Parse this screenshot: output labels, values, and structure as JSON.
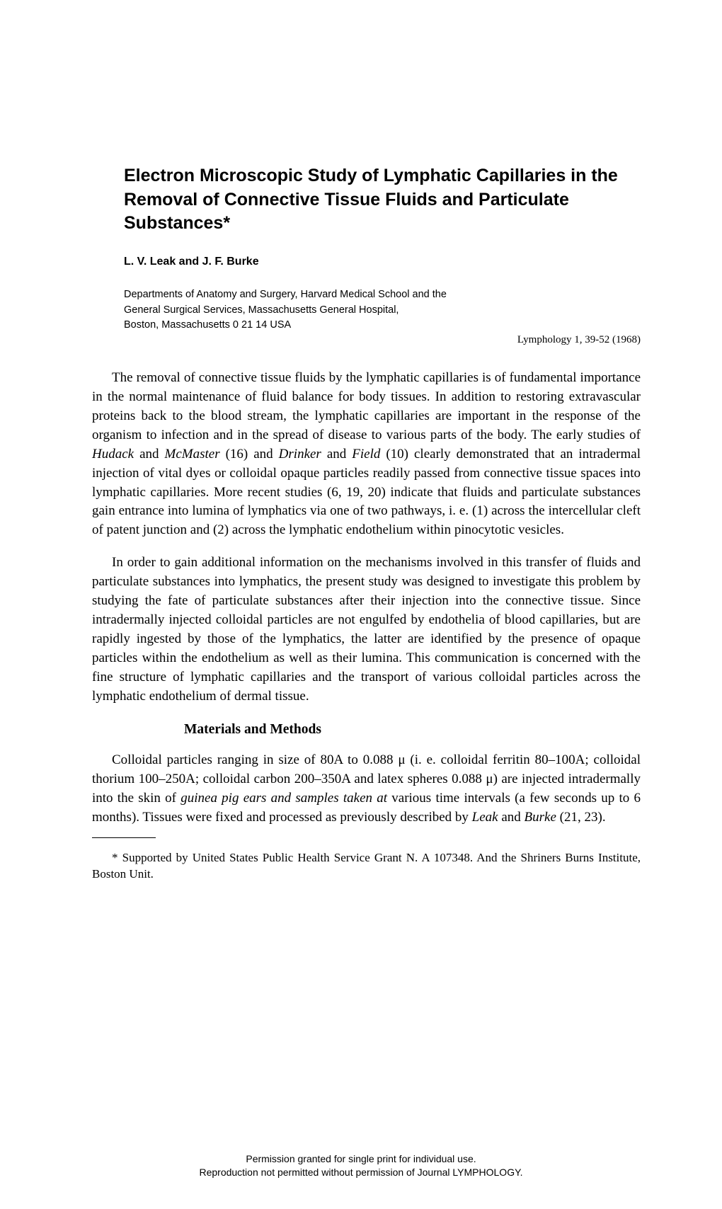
{
  "title": "Electron Microscopic Study of Lymphatic Capillaries in the Removal of Connective Tissue Fluids and Particulate Substances*",
  "authors": "L. V. Leak and J. F. Burke",
  "affiliation_line1": "Departments of Anatomy and Surgery, Harvard Medical School and the",
  "affiliation_line2": "General Surgical Services, Massachusetts General Hospital,",
  "affiliation_line3": "Boston, Massachusetts 0 21 14 USA",
  "citation": "Lymphology 1, 39-52 (1968)",
  "para1_pre": "The removal of connective tissue fluids by the lymphatic capillaries is of fundamental importance in the normal maintenance of fluid balance for body tissues. In addition to restoring extravascular proteins back to the blood stream, the lymphatic capillaries are important in the response of the organism to infection and in the spread of disease to various parts of the body. The early studies of ",
  "para1_i1": "Hudack",
  "para1_m1": " and ",
  "para1_i2": "McMaster",
  "para1_m2": " (16) and ",
  "para1_i3": "Drinker",
  "para1_m3": " and ",
  "para1_i4": "Field",
  "para1_post": " (10) clearly demonstrated that an intradermal injection of vital dyes or colloidal opaque particles readily passed from connective tissue spaces into lymphatic capillaries. More recent studies (6, 19, 20) indicate that fluids and particulate substances gain entrance into lumina of lymphatics via one of two pathways, i. e. (1) across the intercellular cleft of patent junction and (2) across the lymphatic endothelium within pinocytotic vesicles.",
  "para2": "In order to gain additional information on the mechanisms involved in this transfer of fluids and particulate substances into lymphatics, the present study was designed to investigate this problem by studying the fate of particulate substances after their injection into the connective tissue. Since intradermally injected colloidal particles are not engulfed by endothelia of blood capillaries, but are rapidly ingested by those of the lymphatics, the latter are identified by the presence of opaque particles within the endothelium as well as their lumina. This communication is concerned with the fine structure of lymphatic capillaries and the transport of various colloidal particles across the lymphatic endothelium of dermal tissue.",
  "section_heading": "Materials and Methods",
  "para3_pre": "Colloidal particles ranging in size of 80A to 0.088 μ (i. e. colloidal ferritin 80–100A; colloidal thorium 100–250A; colloidal carbon 200–350A and latex spheres 0.088 μ) are injected intradermally into the skin of ",
  "para3_i1": "guinea pig ears and samples taken at",
  "para3_m1": " various time intervals (a few seconds up to 6 months). Tissues were fixed and processed as previously described by ",
  "para3_i2": "Leak",
  "para3_m2": " and ",
  "para3_i3": "Burke",
  "para3_post": " (21, 23).",
  "footnote": "* Supported by United States Public Health Service Grant N. A 107348. And the Shriners Burns Institute, Boston Unit.",
  "footer_line1": "Permission granted for single print for individual use.",
  "footer_line2": "Reproduction not permitted without permission of Journal LYMPHOLOGY."
}
